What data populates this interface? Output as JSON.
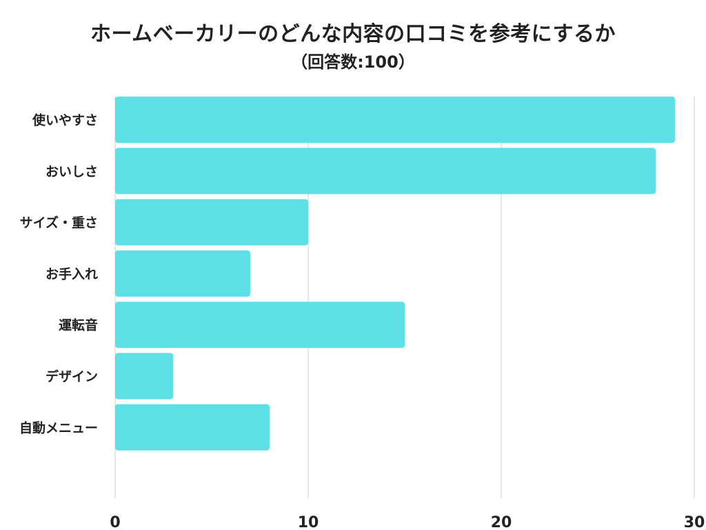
{
  "chart_data": {
    "type": "bar",
    "orientation": "horizontal",
    "title": "ホームベーカリーのどんな内容の口コミを参考にするか",
    "subtitle": "（回答数:100）",
    "categories": [
      "使いやすさ",
      "おいしさ",
      "サイズ・重さ",
      "お手入れ",
      "運転音",
      "デザイン",
      "自動メニュー"
    ],
    "values": [
      29,
      28,
      10,
      7,
      15,
      3,
      8
    ],
    "xlim": [
      0,
      30
    ],
    "xticks": [
      "0",
      "10",
      "20",
      "30"
    ],
    "xlabel": "",
    "ylabel": "",
    "grid": "vertical",
    "legend": "none",
    "bar_color": "#5ce0e5",
    "grid_color": "#dddddd"
  }
}
